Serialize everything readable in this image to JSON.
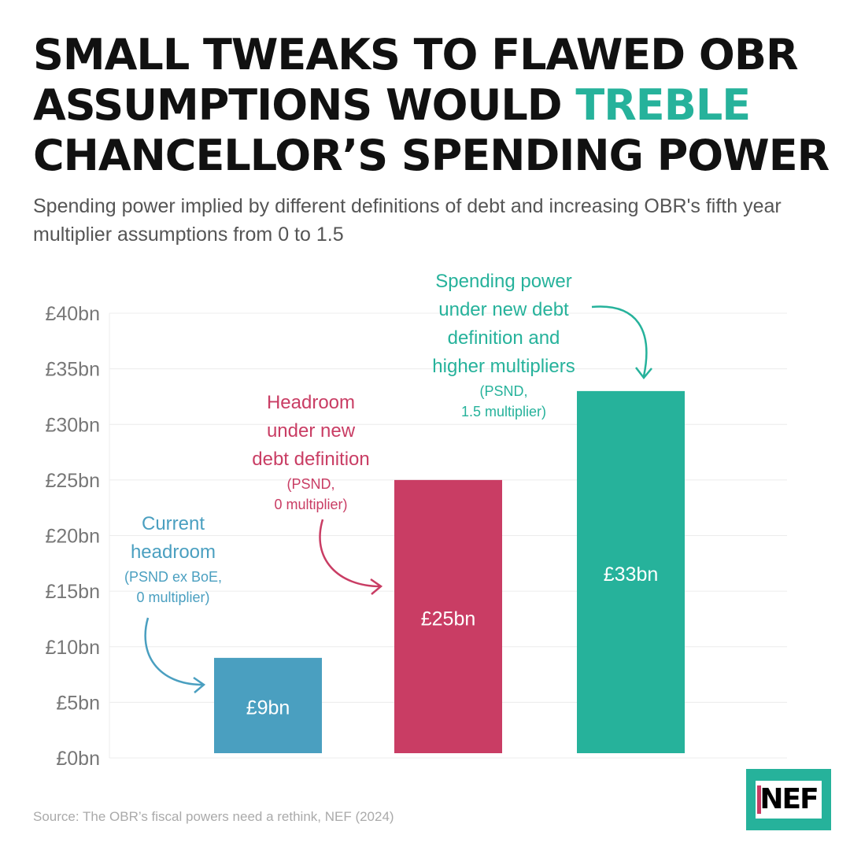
{
  "title": {
    "line1": "SMALL TWEAKS TO FLAWED OBR",
    "line2_pre": "ASSUMPTIONS WOULD ",
    "line2_highlight": "TREBLE",
    "line3": "CHANCELLOR’S SPENDING POWER"
  },
  "subtitle": "Spending power implied by different definitions of debt and increasing OBR's fifth year multiplier assumptions from 0 to 1.5",
  "chart_data": {
    "type": "bar",
    "categories": [
      "Current headroom",
      "Headroom under new debt definition",
      "Spending power under new debt definition and higher multipliers"
    ],
    "values": [
      9,
      25,
      33
    ],
    "value_labels": [
      "£9bn",
      "£25bn",
      "£33bn"
    ],
    "colors": [
      "#4a9fc0",
      "#c93d64",
      "#26b29b"
    ],
    "ylim": [
      0,
      40
    ],
    "yticks": [
      0,
      5,
      10,
      15,
      20,
      25,
      30,
      35,
      40
    ],
    "ytick_labels": [
      "£0bn",
      "£5bn",
      "£10bn",
      "£15bn",
      "£20bn",
      "£25bn",
      "£30bn",
      "£35bn",
      "£40bn"
    ],
    "grid": true,
    "annotations": [
      {
        "main": [
          "Current",
          "headroom"
        ],
        "sub": [
          "(PSND ex BoE,",
          "0 multiplier)"
        ]
      },
      {
        "main": [
          "Headroom",
          "under new",
          "debt definition"
        ],
        "sub": [
          "(PSND,",
          "0 multiplier)"
        ]
      },
      {
        "main": [
          "Spending power",
          "under new debt",
          "definition and",
          "higher multipliers"
        ],
        "sub": [
          "(PSND,",
          "1.5 multiplier)"
        ]
      }
    ]
  },
  "source": "Source: The OBR’s fiscal powers need a rethink, NEF (2024)",
  "logo": "NEF"
}
